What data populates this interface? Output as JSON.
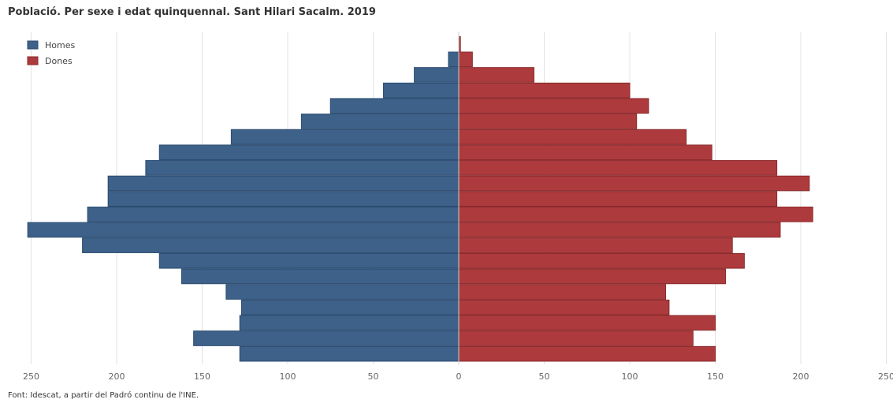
{
  "chart_data": {
    "type": "bar",
    "orientation": "horizontal",
    "subtype": "population-pyramid",
    "title": "Població. Per sexe i edat quinquennal. Sant Hilari Sacalm. 2019",
    "source": "Font: Idescat, a partir del Padró continu de l'INE.",
    "xlim": [
      -250,
      250
    ],
    "x_tick_values": [
      -250,
      -200,
      -150,
      -100,
      -50,
      0,
      50,
      100,
      150,
      200,
      250
    ],
    "x_tick_labels": [
      "250",
      "200",
      "150",
      "100",
      "50",
      "0",
      "50",
      "100",
      "150",
      "200",
      "250"
    ],
    "grid": "vertical",
    "legend": "top-left",
    "series": [
      {
        "name": "Homes",
        "color": "#3d6189",
        "values": [
          128,
          155,
          128,
          127,
          136,
          162,
          175,
          220,
          252,
          217,
          205,
          205,
          183,
          175,
          133,
          92,
          75,
          44,
          26,
          6,
          0
        ]
      },
      {
        "name": "Dones",
        "color": "#ad3b3d",
        "values": [
          150,
          137,
          150,
          123,
          121,
          156,
          167,
          160,
          188,
          207,
          186,
          205,
          186,
          148,
          133,
          104,
          111,
          100,
          44,
          8,
          1
        ]
      }
    ]
  }
}
